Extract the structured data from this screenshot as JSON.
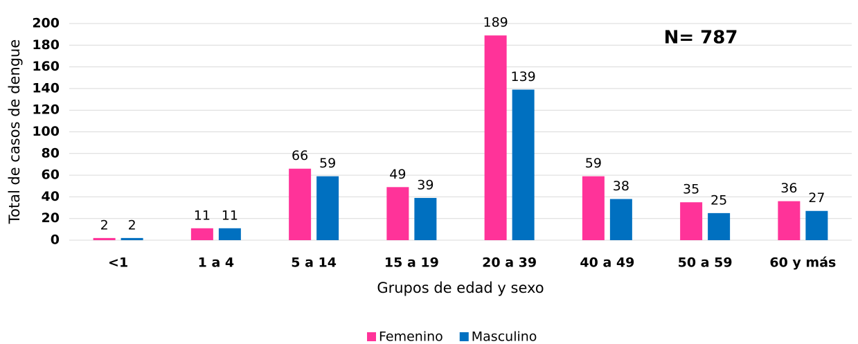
{
  "chart_data": {
    "type": "bar",
    "annotation": "N= 787",
    "x_label": "Grupos de edad y sexo",
    "y_label": "Total de casos de dengue",
    "categories": [
      "<1",
      "1 a 4",
      "5 a 14",
      "15 a 19",
      "20 a 39",
      "40 a 49",
      "50 a 59",
      "60 y más"
    ],
    "series": [
      {
        "name": "Femenino",
        "color": "#ff3399",
        "values": [
          2,
          11,
          66,
          49,
          189,
          59,
          35,
          36
        ]
      },
      {
        "name": "Masculino",
        "color": "#0070c0",
        "values": [
          2,
          11,
          59,
          39,
          139,
          38,
          25,
          27
        ]
      }
    ],
    "ylim": [
      0,
      200
    ],
    "yticks": [
      0,
      20,
      40,
      60,
      80,
      100,
      120,
      140,
      160,
      180,
      200
    ],
    "grid": true,
    "legend": "bottom"
  }
}
